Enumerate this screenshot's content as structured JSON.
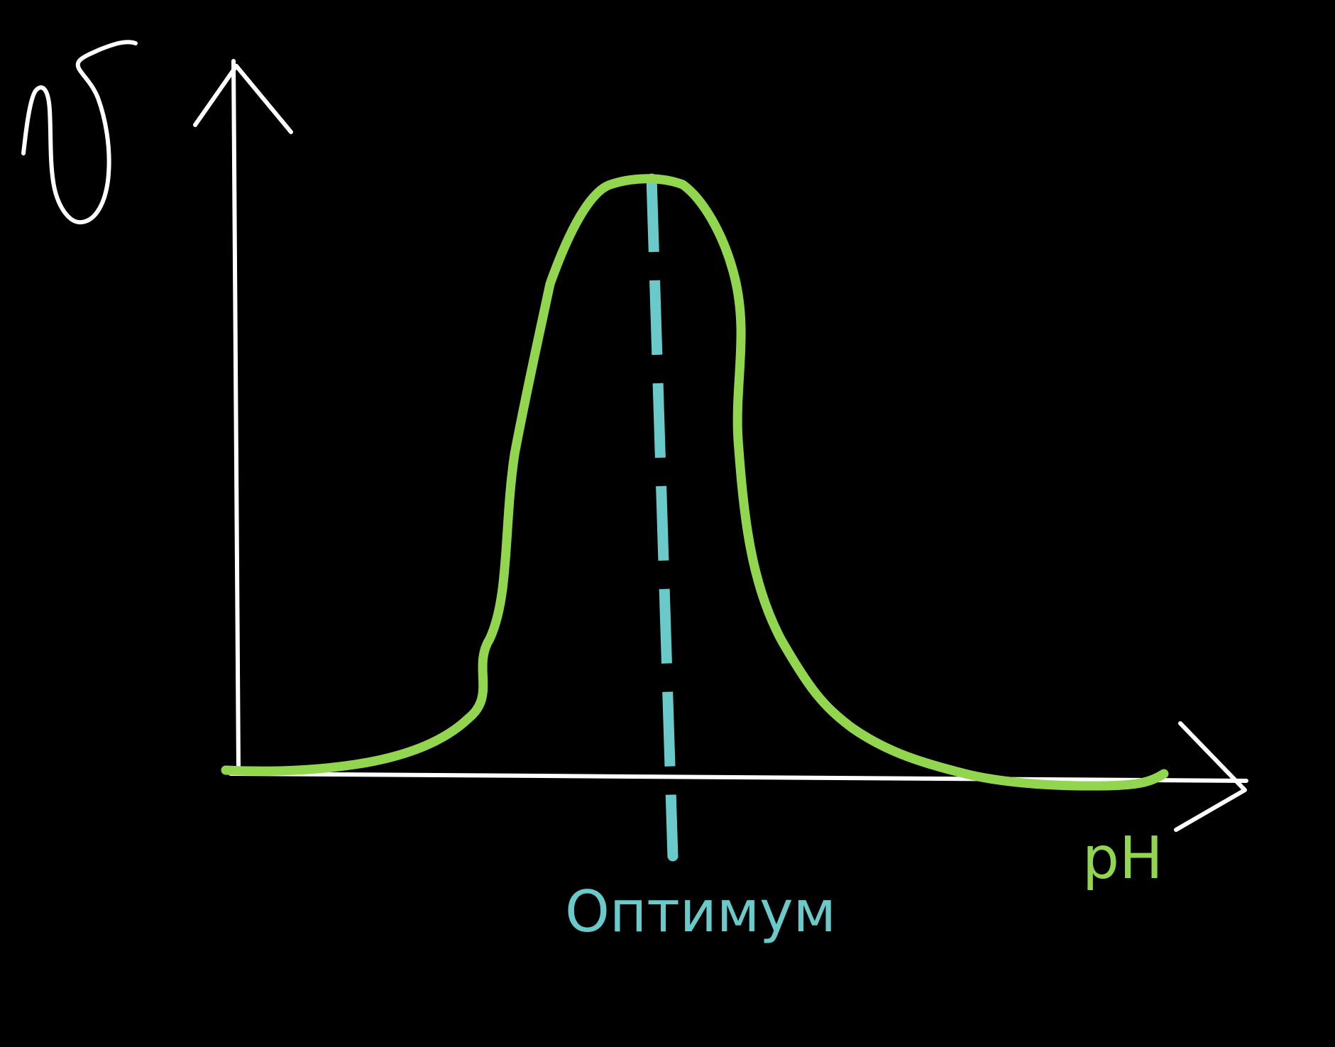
{
  "diagram": {
    "y_axis_symbol": "υ",
    "x_axis_label": "pH",
    "optimum_label": "Оптимум",
    "colors": {
      "background": "#000000",
      "axes": "#ffffff",
      "curve": "#92d64f",
      "optimum_line": "#6ac9c9",
      "x_label": "#92d64f",
      "optimum_text": "#6ac9c9"
    }
  }
}
